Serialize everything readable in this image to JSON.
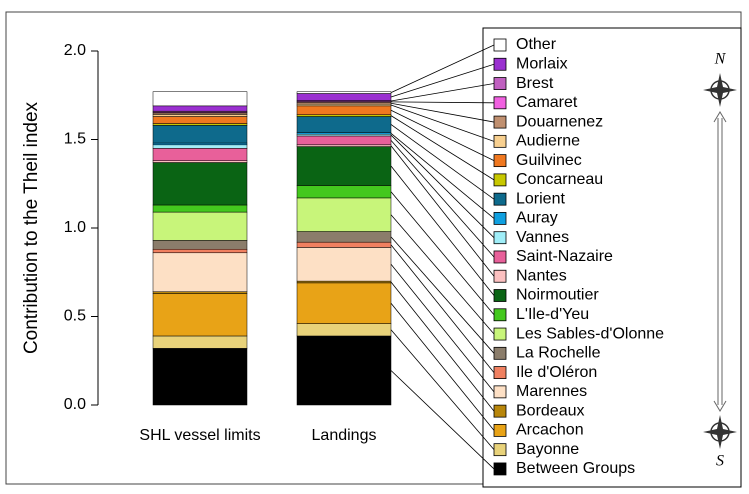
{
  "chart_data": {
    "type": "stacked_bar",
    "ylabel": "Contribution to the Theil index",
    "categories": [
      "SHL vessel limits",
      "Landings"
    ],
    "ylim": [
      0,
      2.0
    ],
    "yticks": [
      {
        "value": 0,
        "label": "0.0"
      },
      {
        "value": 0.5,
        "label": "0.5"
      },
      {
        "value": 1.0,
        "label": "1.0"
      },
      {
        "value": 1.5,
        "label": "1.5"
      },
      {
        "value": 2.0,
        "label": "2.0"
      }
    ],
    "annotations": [
      "N",
      "S"
    ],
    "series": [
      {
        "name": "Between Groups",
        "color": "#000000",
        "values": [
          0.32,
          0.39
        ]
      },
      {
        "name": "Bayonne",
        "color": "#e8d27a",
        "values": [
          0.07,
          0.07
        ]
      },
      {
        "name": "Arcachon",
        "color": "#e8a317",
        "values": [
          0.24,
          0.23
        ]
      },
      {
        "name": "Bordeaux",
        "color": "#b8860b",
        "values": [
          0.01,
          0.01
        ]
      },
      {
        "name": "Marennes",
        "color": "#fde0c5",
        "values": [
          0.22,
          0.19
        ]
      },
      {
        "name": "Ile d'Oléron",
        "color": "#f08060",
        "values": [
          0.02,
          0.03
        ]
      },
      {
        "name": "La Rochelle",
        "color": "#8b7d6b",
        "values": [
          0.05,
          0.06
        ]
      },
      {
        "name": "Les Sables-d'Olonne",
        "color": "#c8f57a",
        "values": [
          0.16,
          0.19
        ]
      },
      {
        "name": "L'Ile-d'Yeu",
        "color": "#44c81e",
        "values": [
          0.04,
          0.07
        ]
      },
      {
        "name": "Noirmoutier",
        "color": "#0a6414",
        "values": [
          0.24,
          0.22
        ]
      },
      {
        "name": "Nantes",
        "color": "#fcc0c0",
        "values": [
          0.01,
          0.01
        ]
      },
      {
        "name": "Saint-Nazaire",
        "color": "#e8609a",
        "values": [
          0.07,
          0.05
        ]
      },
      {
        "name": "Vannes",
        "color": "#a0eef8",
        "values": [
          0.02,
          0.01
        ]
      },
      {
        "name": "Auray",
        "color": "#10a0e0",
        "values": [
          0.01,
          0.01
        ]
      },
      {
        "name": "Lorient",
        "color": "#0e6a8c",
        "values": [
          0.1,
          0.09
        ]
      },
      {
        "name": "Concarneau",
        "color": "#c8c800",
        "values": [
          0.01,
          0.01
        ]
      },
      {
        "name": "Guilvinec",
        "color": "#f07820",
        "values": [
          0.04,
          0.05
        ]
      },
      {
        "name": "Audierne",
        "color": "#f8d090",
        "values": [
          0.01,
          0.01
        ]
      },
      {
        "name": "Douarnenez",
        "color": "#c09070",
        "values": [
          0.01,
          0.01
        ]
      },
      {
        "name": "Camaret",
        "color": "#f060e0",
        "values": [
          0.005,
          0.005
        ]
      },
      {
        "name": "Brest",
        "color": "#c060c0",
        "values": [
          0.005,
          0.005
        ]
      },
      {
        "name": "Morlaix",
        "color": "#9a30d0",
        "values": [
          0.03,
          0.04
        ]
      },
      {
        "name": "Other",
        "color": "#ffffff",
        "values": [
          0.08,
          0.01
        ]
      }
    ]
  }
}
